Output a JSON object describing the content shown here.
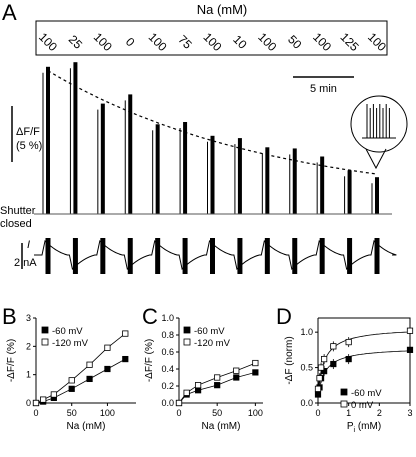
{
  "panel_A": {
    "letter": "A",
    "sodium_header": "Na (mM)",
    "na_values": [
      "100",
      "25",
      "100",
      "0",
      "100",
      "75",
      "100",
      "10",
      "100",
      "50",
      "100",
      "125",
      "100"
    ],
    "fluorescence_scale": "ΔF/F",
    "fluorescence_scale_pct": "(5 %)",
    "time_scale": "5 min",
    "shutter_label_line1": "Shutter",
    "shutter_label_line2": "closed",
    "current_symbol": "I",
    "current_scale": "2 nA"
  },
  "chart_data": [
    {
      "panel": "A",
      "type": "bar",
      "title": "Na (mM)",
      "categories": [
        "100",
        "25",
        "100",
        "0",
        "100",
        "75",
        "100",
        "10",
        "100",
        "50",
        "100",
        "125",
        "100"
      ],
      "values": [
        12.8,
        13.2,
        9.6,
        10.4,
        7.8,
        8.0,
        6.8,
        6.6,
        5.8,
        5.7,
        5.0,
        3.8,
        3.2
      ],
      "unit": "ΔF/F (%)",
      "reference_trend": "dashed exponential decay through 100 mM responses"
    },
    {
      "panel": "B",
      "type": "line",
      "xlabel": "Na (mM)",
      "ylabel": "-ΔF/F (%)",
      "xlim": [
        0,
        140
      ],
      "ylim": [
        0,
        3
      ],
      "xticks": [
        "0",
        "50",
        "100"
      ],
      "yticks": [
        "0",
        "1",
        "2",
        "3"
      ],
      "series": [
        {
          "name": "-60 mV",
          "marker": "filled-square",
          "x": [
            0,
            10,
            25,
            50,
            75,
            100,
            125
          ],
          "y": [
            0,
            0.05,
            0.18,
            0.5,
            0.85,
            1.2,
            1.55
          ]
        },
        {
          "name": "-120 mV",
          "marker": "open-square",
          "x": [
            0,
            10,
            25,
            50,
            75,
            100,
            125
          ],
          "y": [
            0,
            0.12,
            0.3,
            0.8,
            1.35,
            1.95,
            2.45
          ]
        }
      ]
    },
    {
      "panel": "C",
      "type": "line",
      "xlabel": "Na (mM)",
      "ylabel": "-ΔF/F (%)",
      "xlim": [
        0,
        110
      ],
      "ylim": [
        0,
        1.0
      ],
      "xticks": [
        "0",
        "50",
        "100"
      ],
      "yticks": [
        "0.0",
        "0.2",
        "0.4",
        "0.6",
        "0.8",
        "1.0"
      ],
      "series": [
        {
          "name": "-60 mV",
          "marker": "filled-square",
          "x": [
            0,
            10,
            25,
            50,
            75,
            100
          ],
          "y": [
            0,
            0.1,
            0.15,
            0.21,
            0.3,
            0.36
          ]
        },
        {
          "name": "-120 mV",
          "marker": "open-square",
          "x": [
            0,
            10,
            25,
            50,
            75,
            100
          ],
          "y": [
            0,
            0.12,
            0.21,
            0.3,
            0.38,
            0.47
          ]
        }
      ]
    },
    {
      "panel": "D",
      "type": "scatter",
      "xlabel": "P",
      "xlabel_sub": "i",
      "xlabel_unit": " (mM)",
      "ylabel": "-ΔF (norm)",
      "xlim": [
        0,
        3
      ],
      "ylim": [
        0,
        1.2
      ],
      "xticks": [
        "0",
        "1",
        "2",
        "3"
      ],
      "yticks": [
        "0.0",
        "0.5",
        "1.0"
      ],
      "series": [
        {
          "name": "-60 mV",
          "marker": "filled-square",
          "x": [
            0,
            0.05,
            0.1,
            0.2,
            0.5,
            1,
            3
          ],
          "y": [
            0.12,
            0.22,
            0.35,
            0.45,
            0.55,
            0.62,
            0.75
          ]
        },
        {
          "name": "0 mV",
          "marker": "open-square",
          "x": [
            0,
            0.05,
            0.1,
            0.2,
            0.5,
            1,
            3
          ],
          "y": [
            0.2,
            0.35,
            0.5,
            0.62,
            0.8,
            0.86,
            1.02
          ]
        }
      ]
    }
  ]
}
